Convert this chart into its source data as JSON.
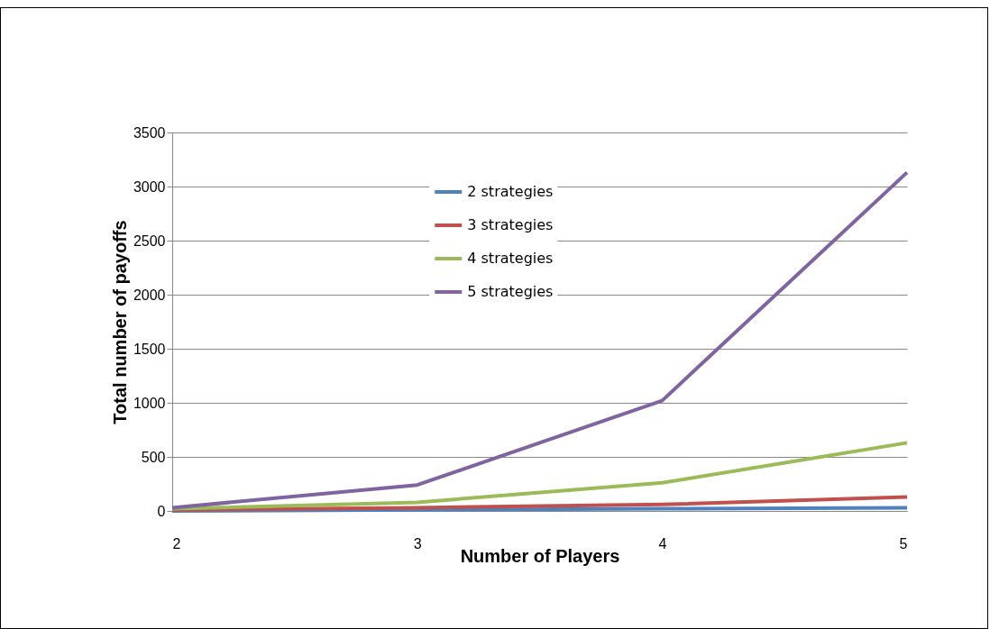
{
  "chart_data": {
    "type": "line",
    "xlabel": "Number of Players",
    "ylabel": "Total number of payoffs",
    "x": [
      2,
      3,
      4,
      5
    ],
    "series": [
      {
        "name": "2 strategies",
        "color": "#4f81bd",
        "values": [
          0,
          10,
          20,
          30
        ]
      },
      {
        "name": "3 strategies",
        "color": "#c0504d",
        "values": [
          10,
          30,
          60,
          130
        ]
      },
      {
        "name": "4 strategies",
        "color": "#9bbb59",
        "values": [
          20,
          80,
          260,
          630
        ]
      },
      {
        "name": "5 strategies",
        "color": "#8064a2",
        "values": [
          30,
          240,
          1020,
          3130
        ]
      }
    ],
    "xlim": [
      2,
      5
    ],
    "xticks": [
      2,
      3,
      4,
      5
    ],
    "ylim": [
      0,
      3500
    ],
    "yticks": [
      0,
      500,
      1000,
      1500,
      2000,
      2500,
      3000,
      3500
    ],
    "grid": "y",
    "legend": "top",
    "marker": "none",
    "line_style": "solid"
  }
}
